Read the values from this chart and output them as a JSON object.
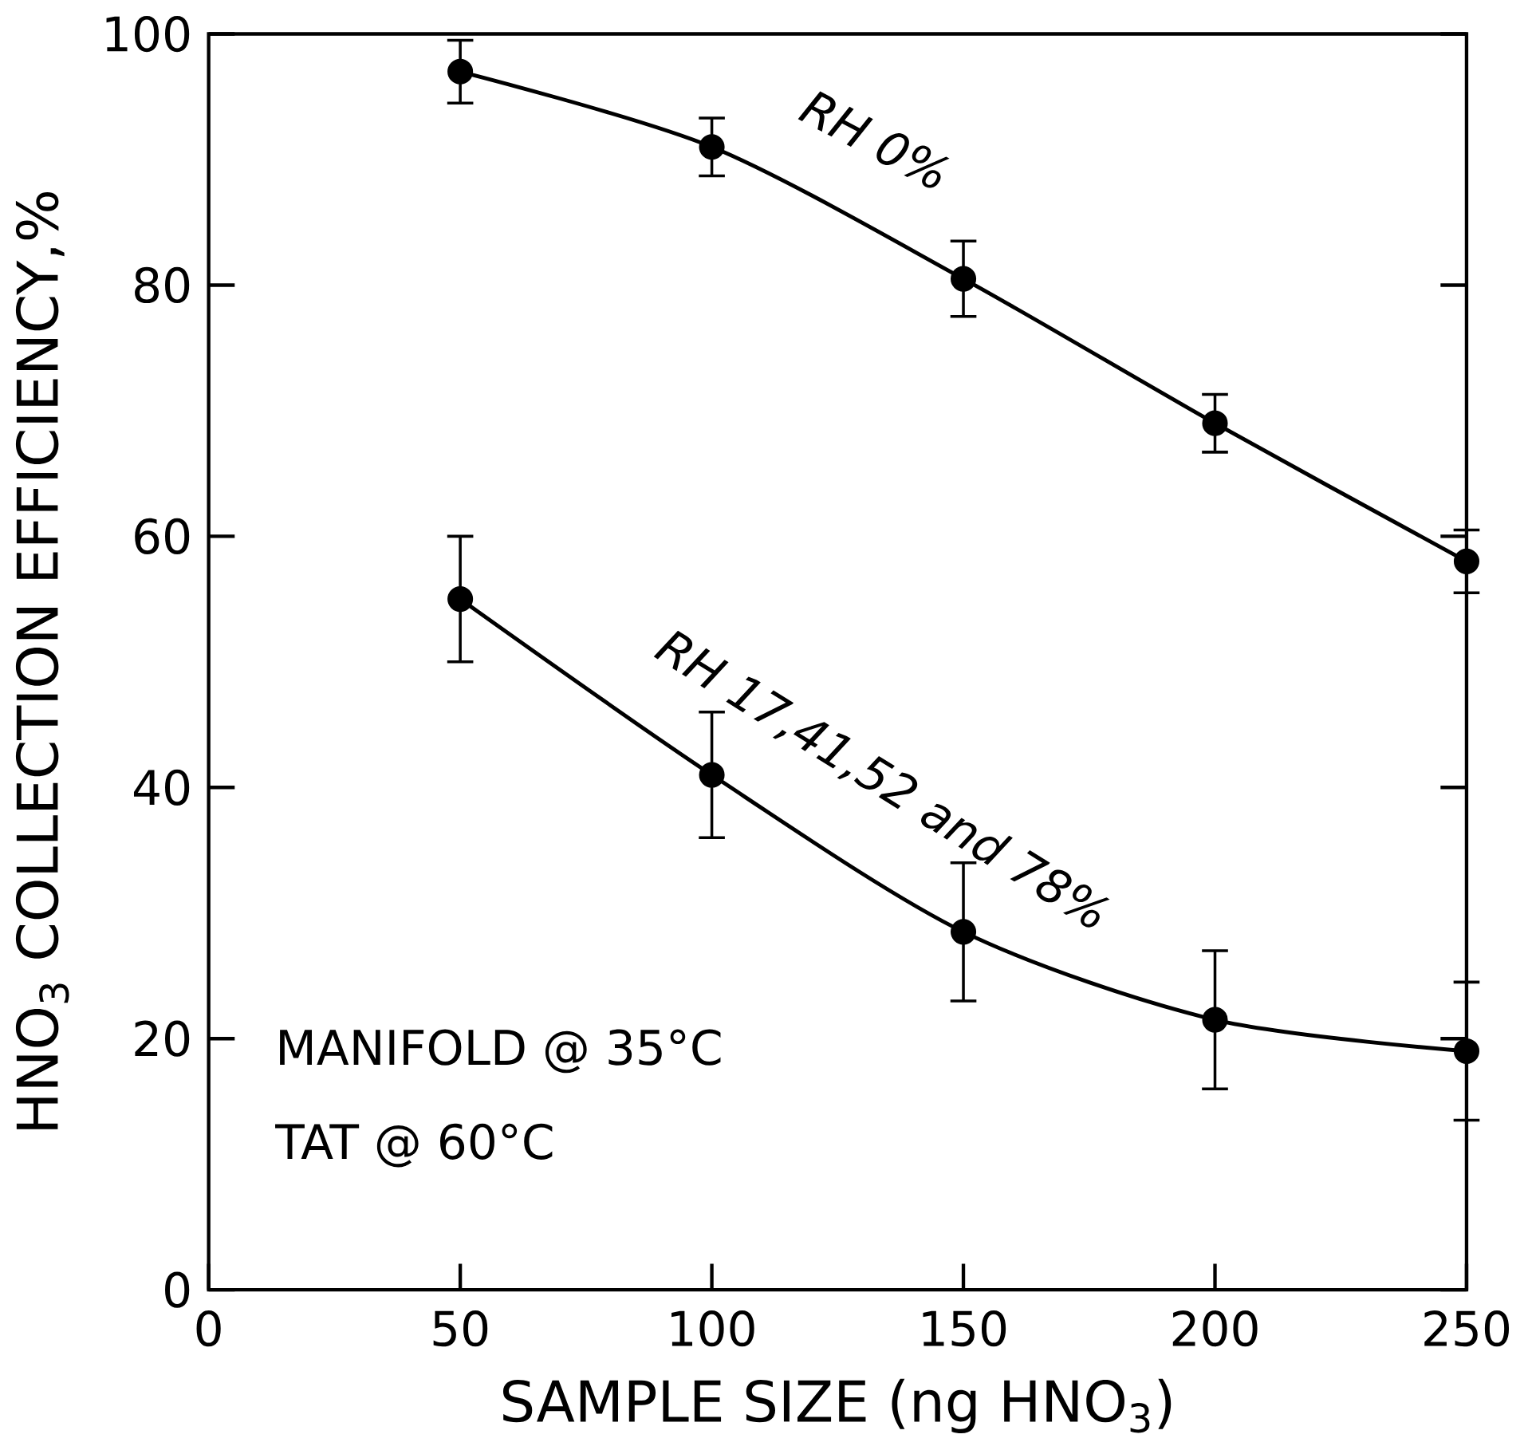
{
  "chart_data": {
    "type": "line",
    "xlabel": "SAMPLE SIZE (ng HNO$_{3}$)",
    "ylabel": "HNO$_{3}$ COLLECTION EFFICIENCY,%",
    "x": [
      50,
      100,
      150,
      200,
      250
    ],
    "series": [
      {
        "name": "RH 0%",
        "color": "#000000",
        "values": [
          97,
          91,
          80.5,
          69,
          58
        ],
        "errors": [
          2.5,
          2.3,
          3,
          2.3,
          2.5
        ]
      },
      {
        "name": "RH 17,41,52 and 78%",
        "color": "#000000",
        "values": [
          55,
          41,
          28.5,
          21.5,
          19
        ],
        "errors": [
          5,
          5,
          5.5,
          5.5,
          5.5
        ]
      }
    ],
    "xlim": [
      0,
      250
    ],
    "ylim": [
      0,
      100
    ],
    "xticks": [
      0,
      50,
      100,
      150,
      200,
      250
    ],
    "yticks": [
      0,
      20,
      40,
      60,
      80,
      100
    ],
    "grid": false,
    "marker": "circle",
    "line_style": "solid",
    "annotations": [
      "MANIFOLD @ 35°C",
      "TAT @ 60°C"
    ]
  }
}
